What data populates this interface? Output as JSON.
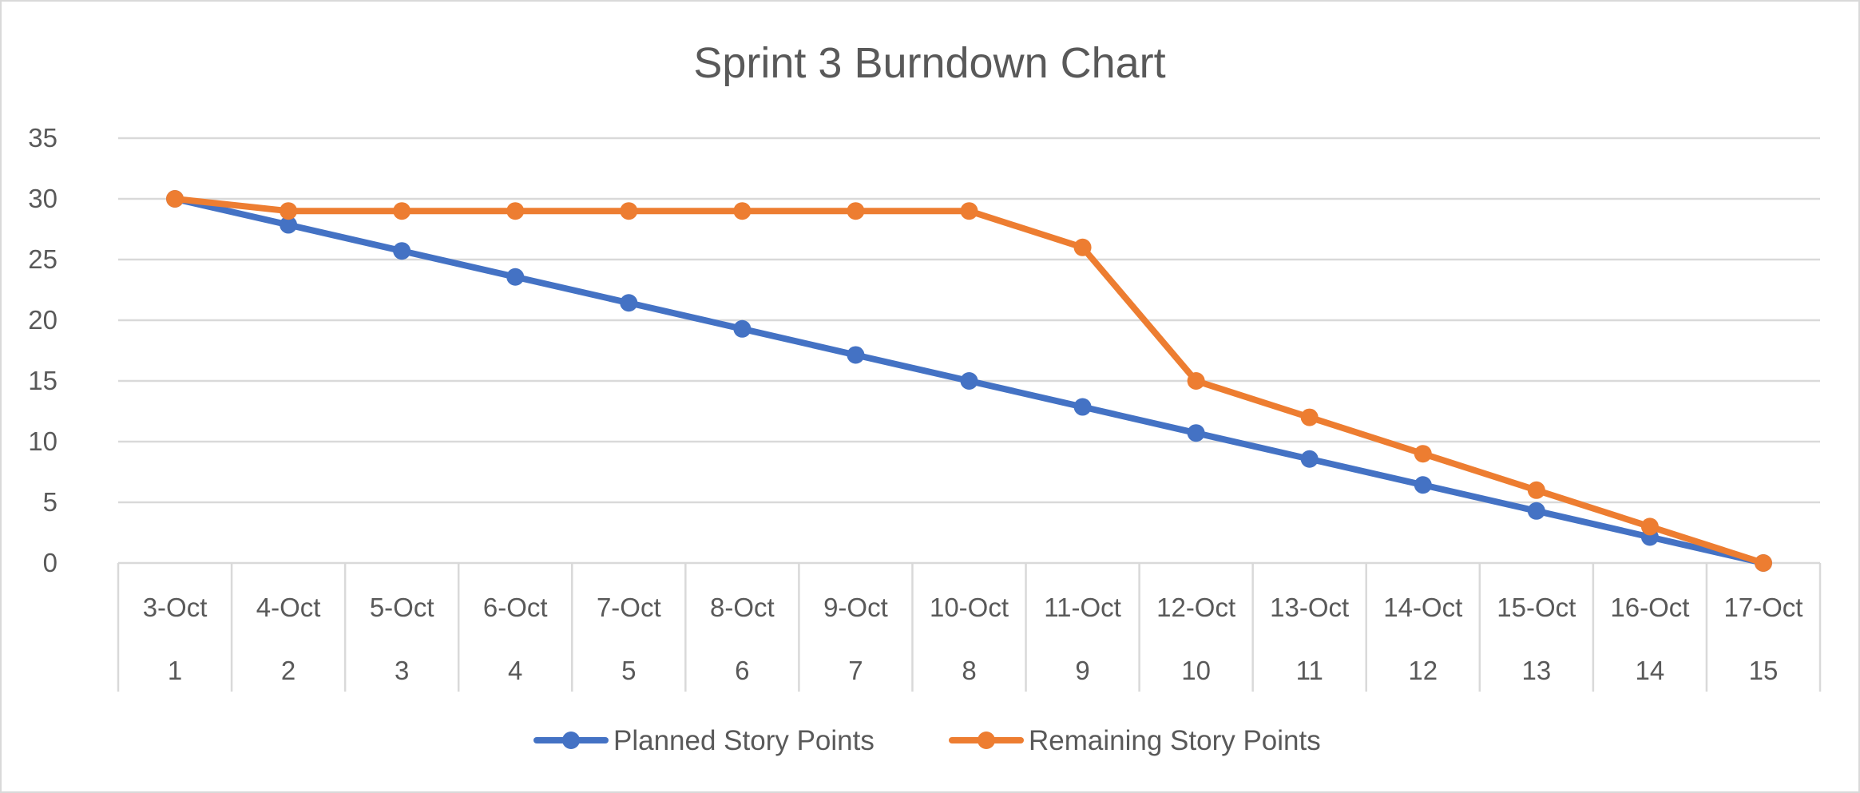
{
  "chart_data": {
    "type": "line",
    "title": "Sprint 3 Burndown Chart",
    "xlabel": "",
    "ylabel": "",
    "ylim": [
      0,
      35
    ],
    "yticks": [
      "0",
      "5",
      "10",
      "15",
      "20",
      "25",
      "30",
      "35"
    ],
    "categories_dates": [
      "3-Oct",
      "4-Oct",
      "5-Oct",
      "6-Oct",
      "7-Oct",
      "8-Oct",
      "9-Oct",
      "10-Oct",
      "11-Oct",
      "12-Oct",
      "13-Oct",
      "14-Oct",
      "15-Oct",
      "16-Oct",
      "17-Oct"
    ],
    "categories_days": [
      "1",
      "2",
      "3",
      "4",
      "5",
      "6",
      "7",
      "8",
      "9",
      "10",
      "11",
      "12",
      "13",
      "14",
      "15"
    ],
    "grid": true,
    "legend_position": "bottom",
    "series": [
      {
        "name": "Planned Story Points",
        "color": "#4472c4",
        "values": [
          30,
          27.86,
          25.71,
          23.57,
          21.43,
          19.29,
          17.14,
          15,
          12.86,
          10.71,
          8.57,
          6.43,
          4.29,
          2.14,
          0
        ]
      },
      {
        "name": "Remaining Story Points",
        "color": "#ed7d31",
        "values": [
          30,
          29,
          29,
          29,
          29,
          29,
          29,
          29,
          26,
          15,
          12,
          9,
          6,
          3,
          0
        ]
      }
    ]
  }
}
